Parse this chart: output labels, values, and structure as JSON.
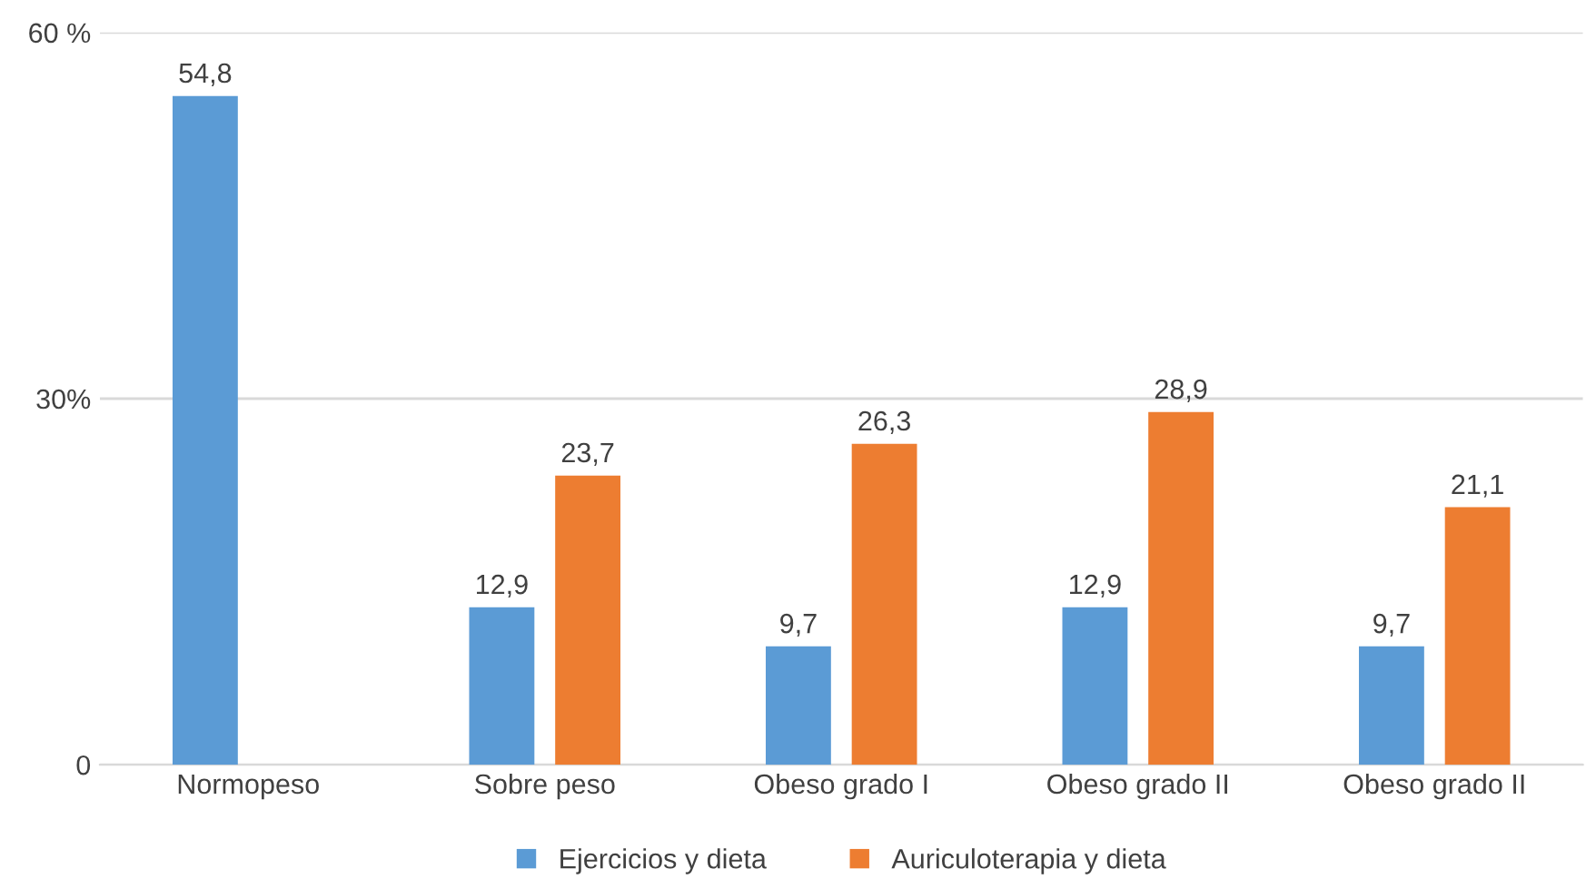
{
  "chart_data": {
    "type": "bar",
    "categories": [
      "Normopeso",
      "Sobre peso",
      "Obeso grado I",
      "Obeso grado II",
      "Obeso grado II"
    ],
    "series": [
      {
        "name": "Ejercicios y dieta",
        "color": "#5b9bd5",
        "values": [
          54.8,
          12.9,
          9.7,
          12.9,
          9.7
        ],
        "value_labels": [
          "54,8",
          "12,9",
          "9,7",
          "12,9",
          "9,7"
        ]
      },
      {
        "name": "Auriculoterapia y dieta",
        "color": "#ed7d31",
        "values": [
          null,
          23.7,
          26.3,
          28.9,
          21.1
        ],
        "value_labels": [
          null,
          "23,7",
          "26,3",
          "28,9",
          "21,1"
        ]
      }
    ],
    "ylim": [
      0,
      60
    ],
    "yticks": [
      0,
      {
        "value": 30,
        "label": "30%"
      },
      {
        "value": 60,
        "label": "60 %"
      }
    ],
    "grid": "y",
    "legend": "bottom"
  }
}
